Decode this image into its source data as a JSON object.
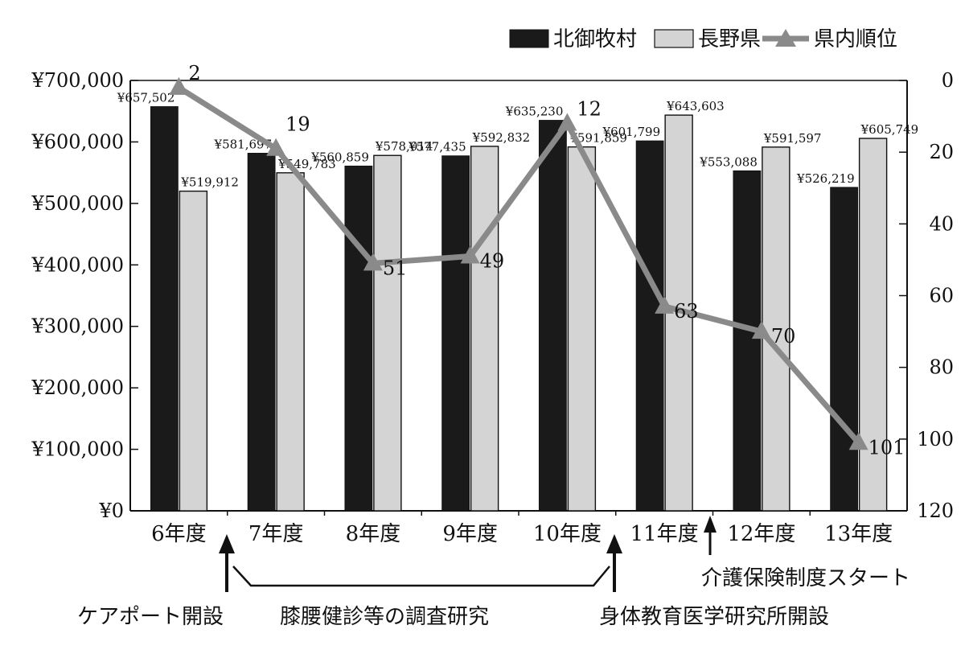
{
  "chart_data": {
    "type": "bar",
    "categories": [
      "6年度",
      "7年度",
      "8年度",
      "9年度",
      "10年度",
      "11年度",
      "12年度",
      "13年度"
    ],
    "series": [
      {
        "name": "北御牧村",
        "kind": "bar",
        "axis": "left",
        "color": "#1a1a1a",
        "values": [
          657502,
          581697,
          560859,
          577435,
          635230,
          601799,
          553088,
          526219
        ],
        "labels": [
          "¥657,502",
          "¥581,697",
          "¥560,859",
          "¥577,435",
          "¥635,230",
          "¥601,799",
          "¥553,088",
          "¥526,219"
        ]
      },
      {
        "name": "長野県",
        "kind": "bar",
        "axis": "left",
        "color": "#d4d4d4",
        "values": [
          519912,
          549783,
          578014,
          592832,
          591859,
          643603,
          591597,
          605749
        ],
        "labels": [
          "¥519,912",
          "¥549,783",
          "¥578,014",
          "¥592,832",
          "¥591,859",
          "¥643,603",
          "¥591,597",
          "¥605,749"
        ]
      },
      {
        "name": "県内順位",
        "kind": "line",
        "axis": "right",
        "marker": "triangle",
        "color": "#8a8a8a",
        "values": [
          2,
          19,
          51,
          49,
          12,
          63,
          70,
          101
        ],
        "labels": [
          "2",
          "19",
          "51",
          "49",
          "12",
          "63",
          "70",
          "101"
        ]
      }
    ],
    "left_axis": {
      "min": 0,
      "max": 700000,
      "ticks": [
        "¥0",
        "¥100,000",
        "¥200,000",
        "¥300,000",
        "¥400,000",
        "¥500,000",
        "¥600,000",
        "¥700,000"
      ]
    },
    "right_axis": {
      "min": 0,
      "max": 120,
      "reversed": true,
      "ticks": [
        "0",
        "20",
        "40",
        "60",
        "80",
        "100",
        "120"
      ]
    },
    "legend_position": "top-right",
    "grid": false
  },
  "annotations": {
    "care_port": "ケアポート開設",
    "survey": "膝腰健診等の調査研究",
    "institute": "身体教育医学研究所開設",
    "insurance": "介護保険制度スタート"
  }
}
